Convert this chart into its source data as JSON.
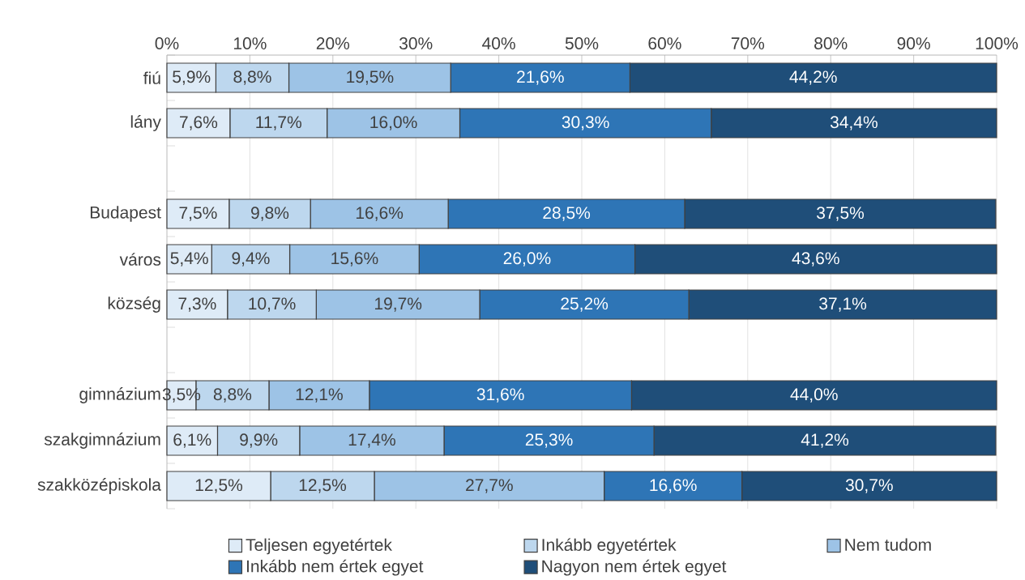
{
  "chart_data": {
    "type": "bar",
    "orientation": "horizontal",
    "stacked": true,
    "grid": "x",
    "legend": "bottom",
    "categories": [
      "fiú",
      "lány",
      null,
      "Budapest",
      "város",
      "község",
      null,
      "gimnázium",
      "szakgimnázium",
      "szakközépiskola"
    ],
    "xlim": [
      0,
      100
    ],
    "xticks": [
      {
        "value": 0,
        "label": "0%"
      },
      {
        "value": 10,
        "label": "10%"
      },
      {
        "value": 20,
        "label": "20%"
      },
      {
        "value": 30,
        "label": "30%"
      },
      {
        "value": 40,
        "label": "40%"
      },
      {
        "value": 50,
        "label": "50%"
      },
      {
        "value": 60,
        "label": "60%"
      },
      {
        "value": 70,
        "label": "70%"
      },
      {
        "value": 80,
        "label": "80%"
      },
      {
        "value": 90,
        "label": "90%"
      },
      {
        "value": 100,
        "label": "100%"
      }
    ],
    "series": [
      {
        "name": "Teljesen egyetértek",
        "color": "#deebf7",
        "values": [
          5.9,
          7.6,
          null,
          7.5,
          5.4,
          7.3,
          null,
          3.5,
          6.1,
          12.5
        ],
        "value_labels": [
          "5,9%",
          "7,6%",
          null,
          "7,5%",
          "5,4%",
          "7,3%",
          null,
          "3,5%",
          "6,1%",
          "12,5%"
        ]
      },
      {
        "name": "Inkább egyetértek",
        "color": "#bdd7ee",
        "values": [
          8.8,
          11.7,
          null,
          9.8,
          9.4,
          10.7,
          null,
          8.8,
          9.9,
          12.5
        ],
        "value_labels": [
          "8,8%",
          "11,7%",
          null,
          "9,8%",
          "9,4%",
          "10,7%",
          null,
          "8,8%",
          "9,9%",
          "12,5%"
        ]
      },
      {
        "name": "Nem tudom",
        "color": "#9dc3e6",
        "values": [
          19.5,
          16.0,
          null,
          16.6,
          15.6,
          19.7,
          null,
          12.1,
          17.4,
          27.7
        ],
        "value_labels": [
          "19,5%",
          "16,0%",
          null,
          "16,6%",
          "15,6%",
          "19,7%",
          null,
          "12,1%",
          "17,4%",
          "27,7%"
        ]
      },
      {
        "name": "Inkább nem értek egyet",
        "color": "#2e75b6",
        "values": [
          21.6,
          30.3,
          null,
          28.5,
          26.0,
          25.2,
          null,
          31.6,
          25.3,
          16.6
        ],
        "value_labels": [
          "21,6%",
          "30,3%",
          null,
          "28,5%",
          "26,0%",
          "25,2%",
          null,
          "31,6%",
          "25,3%",
          "16,6%"
        ]
      },
      {
        "name": "Nagyon nem értek egyet",
        "color": "#1f4e79",
        "values": [
          44.2,
          34.4,
          null,
          37.5,
          43.6,
          37.1,
          null,
          44.0,
          41.2,
          30.7
        ],
        "value_labels": [
          "44,2%",
          "34,4%",
          null,
          "37,5%",
          "43,6%",
          "37,1%",
          null,
          "44,0%",
          "41,2%",
          "30,7%"
        ]
      }
    ]
  }
}
